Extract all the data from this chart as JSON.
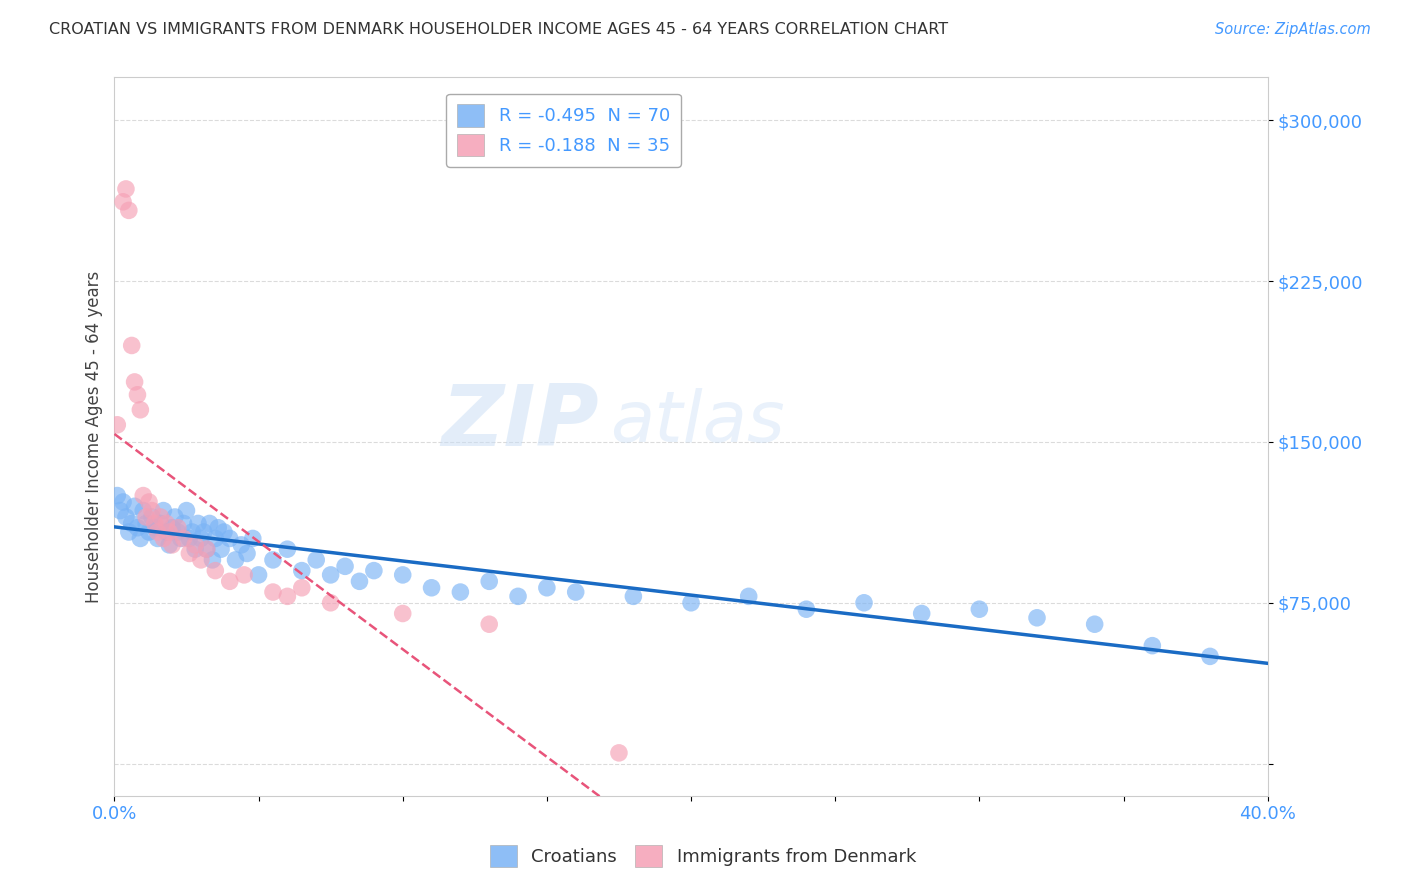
{
  "title": "CROATIAN VS IMMIGRANTS FROM DENMARK HOUSEHOLDER INCOME AGES 45 - 64 YEARS CORRELATION CHART",
  "source": "Source: ZipAtlas.com",
  "ylabel": "Householder Income Ages 45 - 64 years",
  "yticks": [
    0,
    75000,
    150000,
    225000,
    300000
  ],
  "ytick_labels": [
    "",
    "$75,000",
    "$150,000",
    "$225,000",
    "$300,000"
  ],
  "xlim": [
    0.0,
    0.4
  ],
  "ylim": [
    -15000,
    320000
  ],
  "legend_entries": [
    {
      "label": "R = -0.495  N = 70",
      "color": "#7ab3f5"
    },
    {
      "label": "R = -0.188  N = 35",
      "color": "#f5a0b5"
    }
  ],
  "croatians": {
    "color": "#7ab3f5",
    "line_color": "#1a6bc4",
    "x": [
      0.001,
      0.002,
      0.003,
      0.004,
      0.005,
      0.006,
      0.007,
      0.008,
      0.009,
      0.01,
      0.011,
      0.012,
      0.013,
      0.014,
      0.015,
      0.016,
      0.017,
      0.018,
      0.019,
      0.02,
      0.021,
      0.022,
      0.023,
      0.024,
      0.025,
      0.026,
      0.027,
      0.028,
      0.029,
      0.03,
      0.031,
      0.032,
      0.033,
      0.034,
      0.035,
      0.036,
      0.037,
      0.038,
      0.04,
      0.042,
      0.044,
      0.046,
      0.048,
      0.05,
      0.055,
      0.06,
      0.065,
      0.07,
      0.075,
      0.08,
      0.085,
      0.09,
      0.1,
      0.11,
      0.12,
      0.13,
      0.14,
      0.15,
      0.16,
      0.18,
      0.2,
      0.22,
      0.24,
      0.26,
      0.28,
      0.3,
      0.32,
      0.34,
      0.36,
      0.38
    ],
    "y": [
      125000,
      118000,
      122000,
      115000,
      108000,
      112000,
      120000,
      110000,
      105000,
      118000,
      112000,
      108000,
      115000,
      110000,
      105000,
      112000,
      118000,
      108000,
      102000,
      110000,
      115000,
      108000,
      105000,
      112000,
      118000,
      105000,
      108000,
      100000,
      112000,
      105000,
      108000,
      100000,
      112000,
      95000,
      105000,
      110000,
      100000,
      108000,
      105000,
      95000,
      102000,
      98000,
      105000,
      88000,
      95000,
      100000,
      90000,
      95000,
      88000,
      92000,
      85000,
      90000,
      88000,
      82000,
      80000,
      85000,
      78000,
      82000,
      80000,
      78000,
      75000,
      78000,
      72000,
      75000,
      70000,
      72000,
      68000,
      65000,
      55000,
      50000
    ]
  },
  "denmark": {
    "color": "#f5a0b5",
    "line_color": "#e8547a",
    "x": [
      0.001,
      0.003,
      0.004,
      0.005,
      0.006,
      0.007,
      0.008,
      0.009,
      0.01,
      0.011,
      0.012,
      0.013,
      0.014,
      0.015,
      0.016,
      0.017,
      0.018,
      0.019,
      0.02,
      0.022,
      0.024,
      0.026,
      0.028,
      0.03,
      0.032,
      0.035,
      0.04,
      0.045,
      0.055,
      0.06,
      0.065,
      0.075,
      0.1,
      0.13,
      0.175
    ],
    "y": [
      158000,
      262000,
      268000,
      258000,
      195000,
      178000,
      172000,
      165000,
      125000,
      115000,
      122000,
      118000,
      112000,
      108000,
      115000,
      105000,
      112000,
      108000,
      102000,
      110000,
      105000,
      98000,
      102000,
      95000,
      100000,
      90000,
      85000,
      88000,
      80000,
      78000,
      82000,
      75000,
      70000,
      65000,
      5000
    ]
  },
  "background_color": "#ffffff",
  "plot_bg": "#ffffff",
  "grid_color": "#cccccc"
}
